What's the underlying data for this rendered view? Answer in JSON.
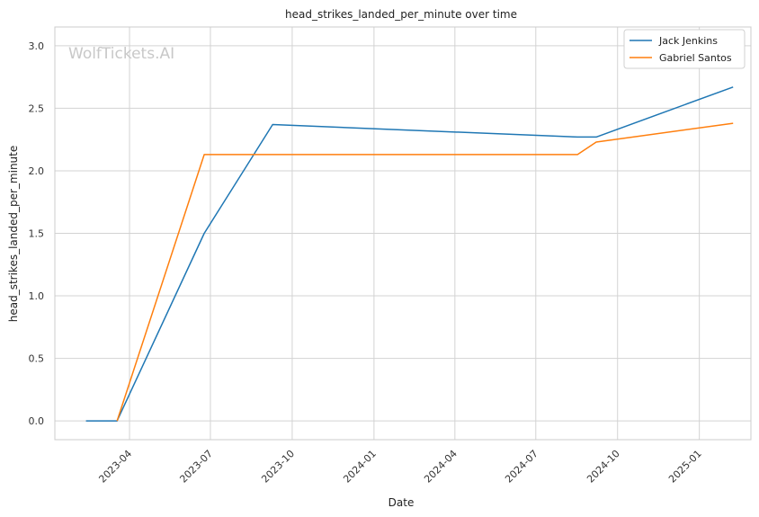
{
  "chart_data": {
    "type": "line",
    "title": "head_strikes_landed_per_minute over time",
    "xlabel": "Date",
    "ylabel": "head_strikes_landed_per_minute",
    "watermark": "WolfTickets.AI",
    "xlim": [
      "2023-01-07",
      "2025-02-28"
    ],
    "ylim": [
      -0.15,
      3.15
    ],
    "x_ticks": [
      "2023-04",
      "2023-07",
      "2023-10",
      "2024-01",
      "2024-04",
      "2024-07",
      "2024-10",
      "2025-01"
    ],
    "y_ticks": [
      0.0,
      0.5,
      1.0,
      1.5,
      2.0,
      2.5,
      3.0
    ],
    "y_tick_labels": [
      "0.0",
      "0.5",
      "1.0",
      "1.5",
      "2.0",
      "2.5",
      "3.0"
    ],
    "grid": true,
    "legend_position": "top-right",
    "colors": {
      "series_1": "#1f77b4",
      "series_2": "#ff7f0e",
      "grid": "#d3d3d3",
      "axes": "#cccccc"
    },
    "series": [
      {
        "name": "Jack Jenkins",
        "x": [
          "2023-02-11",
          "2023-03-18",
          "2023-06-24",
          "2023-09-09",
          "2024-08-17",
          "2024-09-07",
          "2025-02-08"
        ],
        "y": [
          0.0,
          0.0,
          1.5,
          2.37,
          2.27,
          2.27,
          2.67
        ]
      },
      {
        "name": "Gabriel Santos",
        "x": [
          "2023-03-18",
          "2023-06-24",
          "2024-08-17",
          "2024-09-07",
          "2025-02-08"
        ],
        "y": [
          0.0,
          2.13,
          2.13,
          2.23,
          2.38
        ]
      }
    ]
  }
}
